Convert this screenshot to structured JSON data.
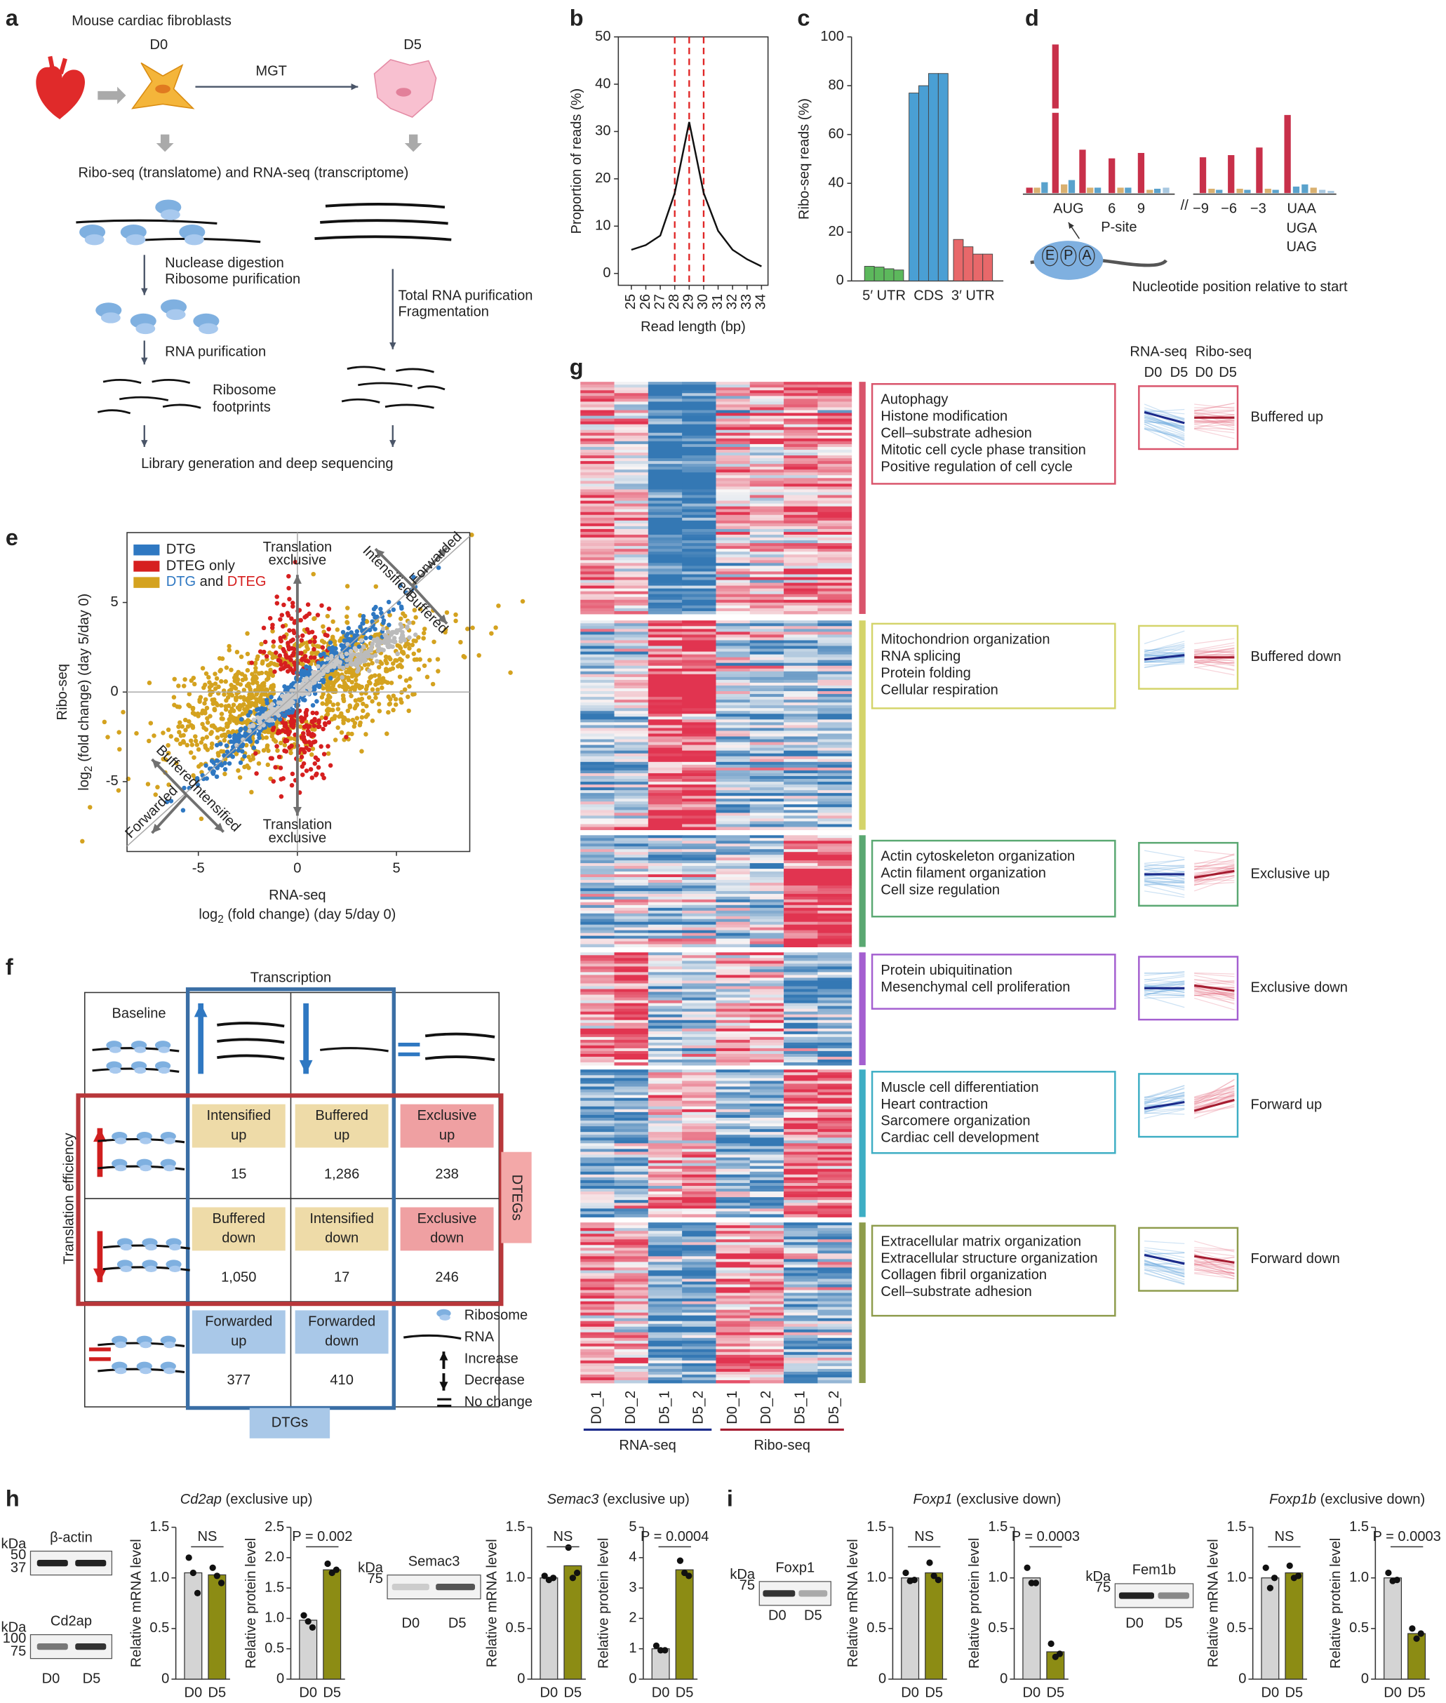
{
  "panel_labels": [
    "a",
    "b",
    "c",
    "d",
    "e",
    "f",
    "g",
    "h",
    "i"
  ],
  "a": {
    "source": "Mouse cardiac fibroblasts",
    "d0": "D0",
    "d5": "D5",
    "mgt": "MGT",
    "methods": "Ribo-seq (translatome) and RNA-seq (transcriptome)",
    "steps_left": [
      "Nuclease digestion",
      "Ribosome purification",
      "RNA purification",
      "Ribosome",
      "footprints"
    ],
    "steps_right": [
      "Total RNA purification",
      "Fragmentation"
    ],
    "final": "Library generation and deep sequencing"
  },
  "d": {
    "left": [
      "AUG",
      "6",
      "9"
    ],
    "right": [
      "−9",
      "−6",
      "−3"
    ],
    "stops": [
      "UAA",
      "UGA",
      "UAG"
    ],
    "psite": "P-site",
    "sites": [
      "E",
      "P",
      "A"
    ],
    "xlabel": "Nucleotide position relative to start"
  },
  "e": {
    "type": "scatter",
    "xlim": [
      -8.6,
      8.7
    ],
    "ylim": [
      -8.9,
      8.9
    ],
    "xticks": [
      -5,
      0,
      5
    ],
    "yticks": [
      -5,
      0,
      5
    ],
    "xlabel": "RNA-seq",
    "ylabel": "Ribo-seq",
    "axis_unit": {
      "pre": "log",
      "sub": "2",
      "post": " (fold change) (day 5/day 0)"
    },
    "legend": [
      {
        "text": "DTG",
        "color": "#2f78c2"
      },
      {
        "text": "DTEG only",
        "color": "#d61f1f"
      },
      {
        "parts": [
          "DTG",
          " and ",
          "DTEG"
        ],
        "color": "#d4a21f"
      }
    ],
    "annotations": {
      "exclusive": [
        "Translation",
        "exclusive"
      ],
      "upper": [
        "Intensified",
        "Forwarded",
        "Buffered"
      ],
      "lower": [
        "Buffered",
        "Forwarded",
        "Intensified"
      ]
    }
  },
  "f": {
    "transcription": "Transcription",
    "baseline": "Baseline",
    "te": "Translation efficiency",
    "dtegs": "DTEGs",
    "dtgs": "DTGs",
    "cells": [
      {
        "name": [
          "Intensified",
          "up"
        ],
        "count": "15"
      },
      {
        "name": [
          "Buffered",
          "up"
        ],
        "count": "1,286"
      },
      {
        "name": [
          "Exclusive",
          "up"
        ],
        "count": "238"
      },
      {
        "name": [
          "Buffered",
          "down"
        ],
        "count": "1,050"
      },
      {
        "name": [
          "Intensified",
          "down"
        ],
        "count": "17"
      },
      {
        "name": [
          "Exclusive",
          "down"
        ],
        "count": "246"
      },
      {
        "name": [
          "Forwarded",
          "up"
        ],
        "count": "377"
      },
      {
        "name": [
          "Forwarded",
          "down"
        ],
        "count": "410"
      }
    ],
    "legend": [
      "Ribosome",
      "RNA",
      "Increase",
      "Decrease",
      "No change"
    ]
  },
  "g": {
    "header": {
      "rna": "RNA-seq",
      "ribo": "Ribo-seq",
      "days": [
        "D0",
        "D5",
        "D0",
        "D5"
      ]
    },
    "columns": [
      "D0_1",
      "D0_2",
      "D5_1",
      "D5_2",
      "D0_1",
      "D0_2",
      "D5_1",
      "D5_2"
    ],
    "groups": [
      "RNA-seq",
      "Ribo-seq"
    ],
    "clusters": [
      {
        "name": "Buffered up",
        "color": "#d9546b",
        "terms": [
          "Autophagy",
          "Histone modification",
          "Cell–substrate adhesion",
          "Mitotic cell cycle phase transition",
          "Positive regulation of cell cycle"
        ]
      },
      {
        "name": "Buffered down",
        "color": "#d4d46a",
        "terms": [
          "Mitochondrion organization",
          "RNA splicing",
          "Protein folding",
          "Cellular respiration"
        ]
      },
      {
        "name": "Exclusive up",
        "color": "#5aa872",
        "terms": [
          "Actin cytoskeleton organization",
          "Actin filament organization",
          "Cell size regulation"
        ]
      },
      {
        "name": "Exclusive down",
        "color": "#a45fd0",
        "terms": [
          "Protein ubiquitination",
          "Mesenchymal cell proliferation"
        ]
      },
      {
        "name": "Forward up",
        "color": "#3eaec4",
        "terms": [
          "Muscle cell differentiation",
          "Heart contraction",
          "Sarcomere organization",
          "Cardiac cell development"
        ]
      },
      {
        "name": "Forward down",
        "color": "#8e9c4c",
        "terms": [
          "Extracellular matrix organization",
          "Extracellular structure organization",
          "Collagen fibril organization",
          "Cell–substrate adhesion"
        ]
      }
    ]
  },
  "h": {
    "titles": [
      {
        "gene": "Cd2ap",
        "desc": " (exclusive up)"
      },
      {
        "gene": "Semac3",
        "desc": " (exclusive up)"
      }
    ],
    "blots": [
      {
        "kda": "kDa",
        "markers": [
          "50",
          "37"
        ],
        "name": "β-actin"
      },
      {
        "kda": "kDa",
        "markers": [
          "100",
          "75"
        ],
        "name": "Cd2ap",
        "lanes": [
          "D0",
          "D5"
        ]
      },
      {
        "kda": "kDa",
        "markers": [
          "75"
        ],
        "name": "Semac3",
        "lanes": [
          "D0",
          "D5"
        ]
      }
    ]
  },
  "i": {
    "titles": [
      {
        "gene": "Foxp1",
        "desc": " (exclusive down)"
      },
      {
        "gene": "Foxp1b",
        "desc": " (exclusive down)"
      }
    ],
    "blots": [
      {
        "kda": "kDa",
        "markers": [
          "75"
        ],
        "name": "Foxp1",
        "lanes": [
          "D0",
          "D5"
        ]
      },
      {
        "kda": "kDa",
        "markers": [
          "75"
        ],
        "name": "Fem1b",
        "lanes": [
          "D0",
          "D5"
        ]
      }
    ]
  },
  "chart_data": [
    {
      "type": "line",
      "x": [
        25,
        26,
        27,
        28,
        29,
        30,
        31,
        32,
        33,
        34
      ],
      "values": [
        5,
        6,
        8,
        17,
        32,
        17,
        9,
        5,
        3,
        1.5
      ],
      "color": "#111111",
      "xlim": [
        24.1,
        34.45
      ],
      "xticks": [
        25,
        26,
        27,
        28,
        29,
        30,
        31,
        32,
        33,
        34
      ],
      "ylim": [
        -2.5,
        50
      ],
      "yticks": [
        0,
        10,
        20,
        30,
        40,
        50
      ],
      "xlabel": "Read length (bp)",
      "ylabel": "Proportion of reads (%)",
      "vlines": [
        28,
        29,
        30
      ],
      "vline_color": "#e02424"
    },
    {
      "type": "bar",
      "ylabel": "Ribo-seq reads (%)",
      "categories": [
        "5′ UTR",
        "CDS",
        "3′ UTR"
      ],
      "colors": [
        "#5cb85c",
        "#4a9fd4",
        "#e8686a"
      ],
      "series": [
        {
          "values": [
            6,
            77,
            17
          ]
        },
        {
          "values": [
            5.7,
            80,
            14
          ]
        },
        {
          "values": [
            5,
            85,
            11
          ]
        },
        {
          "values": [
            4.5,
            85,
            11
          ]
        }
      ],
      "ylim": [
        0,
        100
      ],
      "yticks": [
        0,
        20,
        40,
        60,
        80,
        100
      ]
    },
    {
      "type": "bar",
      "ylabel": "Relative mRNA level",
      "categories": [
        "D0",
        "D5"
      ],
      "values": [
        1.05,
        1.03
      ],
      "colors": [
        "#d4d4d4",
        "#8c8c14"
      ],
      "points": [
        [
          1.2,
          1.05,
          0.85
        ],
        [
          1.1,
          1.02,
          0.95
        ]
      ],
      "ylim": [
        0,
        1.5
      ],
      "yticks": [
        0,
        0.5,
        {
          "value": 1,
          "label": "1.0"
        },
        1.5
      ],
      "annotation": "NS"
    },
    {
      "type": "bar",
      "ylabel": "Relative protein level",
      "categories": [
        "D0",
        "D5"
      ],
      "values": [
        0.97,
        1.8
      ],
      "colors": [
        "#d4d4d4",
        "#8c8c14"
      ],
      "points": [
        [
          1.05,
          0.95,
          0.85
        ],
        [
          1.9,
          1.75,
          1.8
        ]
      ],
      "ylim": [
        0,
        2.5
      ],
      "yticks": [
        0,
        0.5,
        {
          "value": 1,
          "label": "1.0"
        },
        1.5,
        {
          "value": 2,
          "label": "2.0"
        },
        2.5
      ],
      "annotation": "P = 0.002"
    },
    {
      "type": "bar",
      "ylabel": "Relative mRNA level",
      "categories": [
        "D0",
        "D5"
      ],
      "values": [
        1.0,
        1.12
      ],
      "colors": [
        "#d4d4d4",
        "#8c8c14"
      ],
      "points": [
        [
          1.02,
          0.98,
          1.0
        ],
        [
          1.3,
          1.0,
          1.05
        ]
      ],
      "ylim": [
        0,
        1.5
      ],
      "yticks": [
        0,
        0.5,
        {
          "value": 1,
          "label": "1.0"
        },
        1.5
      ],
      "annotation": "NS"
    },
    {
      "type": "bar",
      "ylabel": "Relative protein level",
      "categories": [
        "D0",
        "D5"
      ],
      "values": [
        1.0,
        3.6
      ],
      "colors": [
        "#d4d4d4",
        "#8c8c14"
      ],
      "points": [
        [
          1.1,
          0.95,
          0.95
        ],
        [
          3.9,
          3.5,
          3.4
        ]
      ],
      "ylim": [
        0,
        5
      ],
      "yticks": [
        0,
        1,
        2,
        3,
        4,
        5
      ],
      "annotation": "P = 0.0004"
    },
    {
      "type": "bar",
      "ylabel": "Relative mRNA level",
      "categories": [
        "D0",
        "D5"
      ],
      "values": [
        1.0,
        1.05
      ],
      "colors": [
        "#d4d4d4",
        "#8c8c14"
      ],
      "points": [
        [
          1.05,
          0.97,
          0.98
        ],
        [
          1.15,
          1.02,
          0.98
        ]
      ],
      "ylim": [
        0,
        1.5
      ],
      "yticks": [
        0,
        0.5,
        {
          "value": 1,
          "label": "1.0"
        },
        1.5
      ],
      "annotation": "NS"
    },
    {
      "type": "bar",
      "ylabel": "Relative protein level",
      "categories": [
        "D0",
        "D5"
      ],
      "values": [
        1.0,
        0.27
      ],
      "colors": [
        "#d4d4d4",
        "#8c8c14"
      ],
      "points": [
        [
          1.1,
          0.95,
          0.95
        ],
        [
          0.35,
          0.22,
          0.25
        ]
      ],
      "ylim": [
        0,
        1.5
      ],
      "yticks": [
        0,
        0.5,
        {
          "value": 1,
          "label": "1.0"
        },
        1.5
      ],
      "annotation": "P = 0.0003"
    },
    {
      "type": "bar",
      "ylabel": "Relative mRNA level",
      "categories": [
        "D0",
        "D5"
      ],
      "values": [
        1.0,
        1.05
      ],
      "colors": [
        "#d4d4d4",
        "#8c8c14"
      ],
      "points": [
        [
          1.1,
          0.9,
          1.0
        ],
        [
          1.12,
          1.0,
          1.02
        ]
      ],
      "ylim": [
        0,
        1.5
      ],
      "yticks": [
        0,
        0.5,
        {
          "value": 1,
          "label": "1.0"
        },
        1.5
      ],
      "annotation": "NS"
    },
    {
      "type": "bar",
      "ylabel": "Relative protein level",
      "categories": [
        "D0",
        "D5"
      ],
      "values": [
        1.0,
        0.45
      ],
      "colors": [
        "#d4d4d4",
        "#8c8c14"
      ],
      "points": [
        [
          1.05,
          0.97,
          0.98
        ],
        [
          0.5,
          0.4,
          0.45
        ]
      ],
      "ylim": [
        0,
        1.5
      ],
      "yticks": [
        0,
        0.5,
        {
          "value": 1,
          "label": "1.0"
        },
        1.5
      ],
      "annotation": "P = 0.0003"
    }
  ]
}
